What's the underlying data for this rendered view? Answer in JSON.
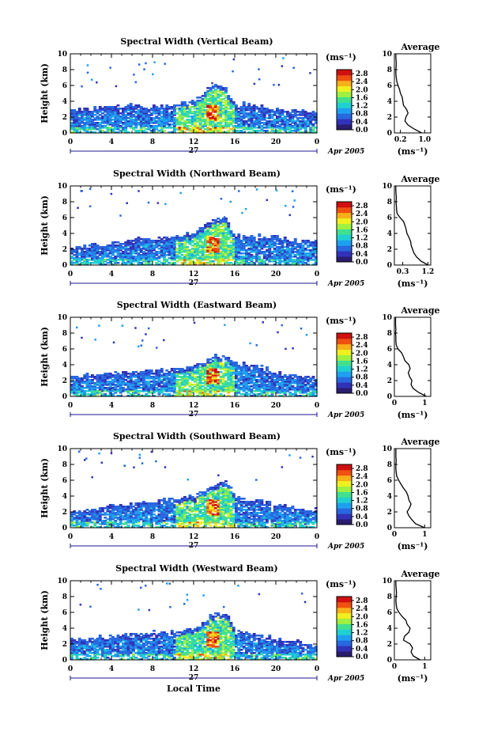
{
  "figure": {
    "xlabel": "Local Time",
    "date_label": "Apr 2005",
    "day_label": "27",
    "colorbar_unit": "(ms⁻¹)"
  },
  "colors": {
    "scale": [
      "#2a1c6e",
      "#3232b8",
      "#2868e0",
      "#1ea0f0",
      "#20d0d0",
      "#40e090",
      "#a0f040",
      "#f0f020",
      "#f8b018",
      "#f05010",
      "#d01010"
    ],
    "black": "#000000",
    "axis_blue": "#1a1a8c"
  },
  "chart_data": [
    {
      "type": "heatmap",
      "title": "Spectral Width (Vertical Beam)",
      "xlabel": "",
      "ylabel": "Height (km)",
      "xlim": [
        0,
        24
      ],
      "ylim": [
        0,
        10
      ],
      "xticks": [
        "0",
        "4",
        "8",
        "12",
        "16",
        "20",
        "0"
      ],
      "yticks": [
        "0",
        "2",
        "4",
        "6",
        "8",
        "10"
      ],
      "colorbar": {
        "ticks": [
          "0.0",
          "0.4",
          "0.8",
          "1.2",
          "1.6",
          "2.0",
          "2.4",
          "2.8"
        ],
        "range": [
          0,
          3.0
        ]
      },
      "echo_top": [
        [
          0,
          2.8
        ],
        [
          2,
          3.0
        ],
        [
          4,
          3.2
        ],
        [
          6,
          3.5
        ],
        [
          8,
          3.2
        ],
        [
          10,
          3.4
        ],
        [
          12,
          3.8
        ],
        [
          13.2,
          5.5
        ],
        [
          14,
          6.0
        ],
        [
          15,
          5.8
        ],
        [
          16,
          3.6
        ],
        [
          18,
          3.4
        ],
        [
          20,
          3.0
        ],
        [
          22,
          2.8
        ],
        [
          24,
          2.6
        ]
      ],
      "average": {
        "title": "Average",
        "xlabel": "(ms⁻¹)",
        "xticks": [
          "0.2",
          "1.0"
        ],
        "xtick_values": [
          0.2,
          1.0
        ],
        "xlim": [
          0,
          1.2
        ],
        "ylim": [
          0,
          10
        ],
        "yticks": [
          "0",
          "2",
          "4",
          "6",
          "8",
          "10"
        ],
        "height": [
          0,
          0.5,
          1,
          1.5,
          2,
          2.5,
          3,
          3.5,
          4,
          4.5,
          5,
          5.5,
          6,
          6.5,
          7,
          7.5,
          8,
          8.5,
          9,
          9.5,
          10
        ],
        "value": [
          0.9,
          0.65,
          0.45,
          0.35,
          0.38,
          0.45,
          0.4,
          0.3,
          0.28,
          0.26,
          0.2,
          0.17,
          0.12,
          0.08,
          0.06,
          0.05,
          0.05,
          0.06,
          0.06,
          0.05,
          0.05
        ]
      }
    },
    {
      "type": "heatmap",
      "title": "Spectral Width (Northward Beam)",
      "xlabel": "",
      "ylabel": "Height (km)",
      "xlim": [
        0,
        24
      ],
      "ylim": [
        0,
        10
      ],
      "xticks": [
        "0",
        "4",
        "8",
        "12",
        "16",
        "20",
        "0"
      ],
      "yticks": [
        "0",
        "2",
        "4",
        "6",
        "8",
        "10"
      ],
      "colorbar": {
        "ticks": [
          "0.0",
          "0.4",
          "0.8",
          "1.2",
          "1.6",
          "2.0",
          "2.4",
          "2.8"
        ],
        "range": [
          0,
          3.0
        ]
      },
      "echo_top": [
        [
          0,
          2.2
        ],
        [
          2,
          2.4
        ],
        [
          4,
          2.6
        ],
        [
          6,
          3.2
        ],
        [
          8,
          3.4
        ],
        [
          10,
          3.6
        ],
        [
          12,
          3.8
        ],
        [
          13.8,
          5.6
        ],
        [
          14.5,
          6.0
        ],
        [
          15.3,
          5.7
        ],
        [
          16,
          3.8
        ],
        [
          18,
          3.6
        ],
        [
          20,
          3.4
        ],
        [
          22,
          3.0
        ],
        [
          24,
          2.8
        ]
      ],
      "average": {
        "title": "Average",
        "xlabel": "(ms⁻¹)",
        "xticks": [
          "0.3",
          "1.2"
        ],
        "xtick_values": [
          0.3,
          1.2
        ],
        "xlim": [
          0,
          1.3
        ],
        "ylim": [
          0,
          10
        ],
        "yticks": [
          "0",
          "2",
          "4",
          "6",
          "8",
          "10"
        ],
        "height": [
          0,
          0.5,
          1,
          1.5,
          2,
          2.5,
          3,
          3.5,
          4,
          4.5,
          5,
          5.5,
          6,
          6.5,
          7,
          7.5,
          8,
          8.5,
          9,
          9.5,
          10
        ],
        "value": [
          1.2,
          0.95,
          0.8,
          0.7,
          0.65,
          0.6,
          0.58,
          0.52,
          0.45,
          0.42,
          0.38,
          0.33,
          0.2,
          0.1,
          0.08,
          0.07,
          0.06,
          0.07,
          0.06,
          0.05,
          0.05
        ]
      }
    },
    {
      "type": "heatmap",
      "title": "Spectral Width (Eastward Beam)",
      "xlabel": "",
      "ylabel": "Height (km)",
      "xlim": [
        0,
        24
      ],
      "ylim": [
        0,
        10
      ],
      "xticks": [
        "0",
        "4",
        "8",
        "12",
        "16",
        "20",
        "0"
      ],
      "yticks": [
        "0",
        "2",
        "4",
        "6",
        "8",
        "10"
      ],
      "colorbar": {
        "ticks": [
          "0.0",
          "0.4",
          "0.8",
          "1.2",
          "1.6",
          "2.0",
          "2.4",
          "2.8"
        ],
        "range": [
          0,
          3.0
        ]
      },
      "echo_top": [
        [
          0,
          2.6
        ],
        [
          2,
          2.6
        ],
        [
          4,
          2.8
        ],
        [
          6,
          3.2
        ],
        [
          8,
          3.2
        ],
        [
          10,
          3.4
        ],
        [
          12,
          3.6
        ],
        [
          13.5,
          4.8
        ],
        [
          14.2,
          5.2
        ],
        [
          15.2,
          5.0
        ],
        [
          16,
          4.2
        ],
        [
          18,
          3.8
        ],
        [
          20,
          3.0
        ],
        [
          22,
          2.6
        ],
        [
          24,
          2.4
        ]
      ],
      "average": {
        "title": "Average",
        "xlabel": "(ms⁻¹)",
        "xticks": [
          "0",
          "1"
        ],
        "xtick_values": [
          0,
          1
        ],
        "xlim": [
          0,
          1.2
        ],
        "ylim": [
          0,
          10
        ],
        "yticks": [
          "0",
          "2",
          "4",
          "6",
          "8",
          "10"
        ],
        "height": [
          0,
          0.5,
          1,
          1.5,
          2,
          2.5,
          3,
          3.5,
          4,
          4.5,
          5,
          5.5,
          6,
          6.5,
          7,
          7.5,
          8,
          8.5,
          9,
          9.5,
          10
        ],
        "value": [
          1.05,
          0.8,
          0.62,
          0.55,
          0.58,
          0.5,
          0.46,
          0.52,
          0.48,
          0.35,
          0.3,
          0.24,
          0.12,
          0.06,
          0.05,
          0.05,
          0.04,
          0.05,
          0.04,
          0.04,
          0.04
        ]
      }
    },
    {
      "type": "heatmap",
      "title": "Spectral Width (Southward Beam)",
      "xlabel": "",
      "ylabel": "Height (km)",
      "xlim": [
        0,
        24
      ],
      "ylim": [
        0,
        10
      ],
      "xticks": [
        "0",
        "4",
        "8",
        "12",
        "16",
        "20",
        "0"
      ],
      "yticks": [
        "0",
        "2",
        "4",
        "6",
        "8",
        "10"
      ],
      "colorbar": {
        "ticks": [
          "0.0",
          "0.4",
          "0.8",
          "1.2",
          "1.6",
          "2.0",
          "2.4",
          "2.8"
        ],
        "range": [
          0,
          3.0
        ]
      },
      "echo_top": [
        [
          0,
          2.2
        ],
        [
          2,
          2.2
        ],
        [
          4,
          2.6
        ],
        [
          6,
          3.0
        ],
        [
          8,
          3.2
        ],
        [
          10,
          3.6
        ],
        [
          12,
          3.8
        ],
        [
          13.5,
          5.0
        ],
        [
          14.5,
          5.8
        ],
        [
          15.5,
          5.4
        ],
        [
          16,
          3.8
        ],
        [
          18,
          3.4
        ],
        [
          20,
          2.8
        ],
        [
          22,
          2.4
        ],
        [
          24,
          2.2
        ]
      ],
      "average": {
        "title": "Average",
        "xlabel": "(ms⁻¹)",
        "xticks": [
          "0",
          "1"
        ],
        "xtick_values": [
          0,
          1
        ],
        "xlim": [
          0,
          1.2
        ],
        "ylim": [
          0,
          10
        ],
        "yticks": [
          "0",
          "2",
          "4",
          "6",
          "8",
          "10"
        ],
        "height": [
          0,
          0.5,
          1,
          1.5,
          2,
          2.5,
          3,
          3.5,
          4,
          4.5,
          5,
          5.5,
          6,
          6.5,
          7,
          7.5,
          8,
          8.5,
          9,
          9.5,
          10
        ],
        "value": [
          1.0,
          0.7,
          0.58,
          0.48,
          0.42,
          0.5,
          0.55,
          0.48,
          0.45,
          0.4,
          0.3,
          0.22,
          0.14,
          0.08,
          0.06,
          0.05,
          0.05,
          0.06,
          0.05,
          0.05,
          0.05
        ]
      }
    },
    {
      "type": "heatmap",
      "title": "Spectral Width (Westward Beam)",
      "xlabel": "Local Time",
      "ylabel": "Height (km)",
      "xlim": [
        0,
        24
      ],
      "ylim": [
        0,
        10
      ],
      "xticks": [
        "0",
        "4",
        "8",
        "12",
        "16",
        "20",
        "0"
      ],
      "yticks": [
        "0",
        "2",
        "4",
        "6",
        "8",
        "10"
      ],
      "colorbar": {
        "ticks": [
          "0.0",
          "0.4",
          "0.8",
          "1.2",
          "1.6",
          "2.0",
          "2.4",
          "2.8"
        ],
        "range": [
          0,
          3.0
        ]
      },
      "echo_top": [
        [
          0,
          2.4
        ],
        [
          2,
          2.6
        ],
        [
          4,
          3.0
        ],
        [
          6,
          3.2
        ],
        [
          8,
          3.4
        ],
        [
          10,
          3.4
        ],
        [
          12,
          3.8
        ],
        [
          13.6,
          5.4
        ],
        [
          14.3,
          6.0
        ],
        [
          15.3,
          5.6
        ],
        [
          16,
          3.6
        ],
        [
          18,
          3.2
        ],
        [
          20,
          2.6
        ],
        [
          22,
          2.2
        ],
        [
          24,
          2.0
        ]
      ],
      "average": {
        "title": "Average",
        "xlabel": "(ms⁻¹)",
        "xticks": [
          "0",
          "1"
        ],
        "xtick_values": [
          0,
          1
        ],
        "xlim": [
          0,
          1.2
        ],
        "ylim": [
          0,
          10
        ],
        "yticks": [
          "0",
          "2",
          "4",
          "6",
          "8",
          "10"
        ],
        "height": [
          0,
          0.5,
          1,
          1.5,
          2,
          2.5,
          3,
          3.5,
          4,
          4.5,
          5,
          5.5,
          6,
          6.5,
          7,
          7.5,
          8,
          8.5,
          9,
          9.5,
          10
        ],
        "value": [
          0.85,
          0.62,
          0.55,
          0.6,
          0.52,
          0.3,
          0.34,
          0.48,
          0.52,
          0.42,
          0.38,
          0.25,
          0.15,
          0.08,
          0.06,
          0.05,
          0.06,
          0.07,
          0.06,
          0.05,
          0.05
        ]
      }
    }
  ]
}
